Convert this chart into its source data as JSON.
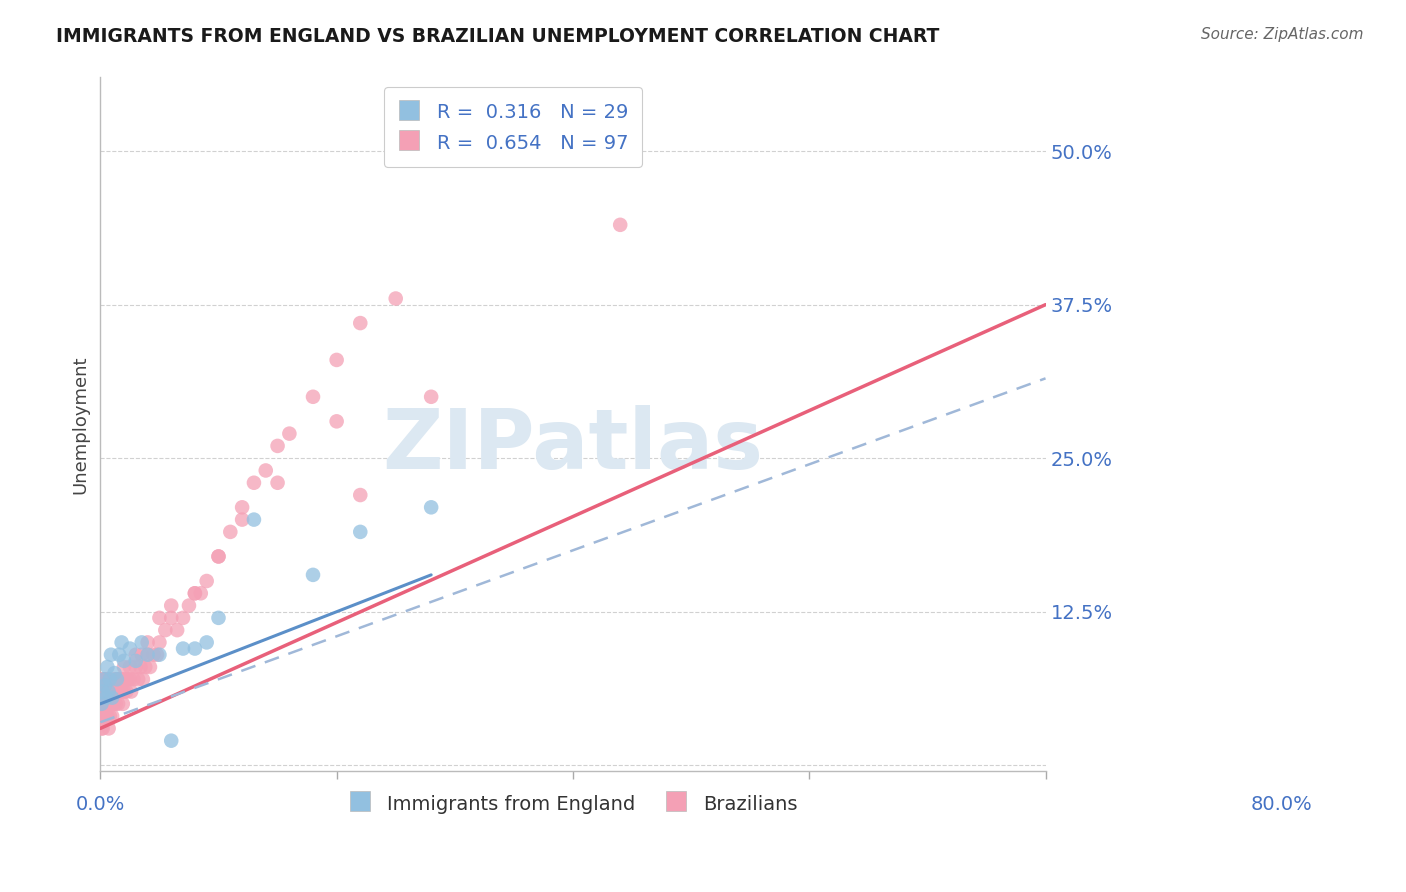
{
  "title": "IMMIGRANTS FROM ENGLAND VS BRAZILIAN UNEMPLOYMENT CORRELATION CHART",
  "source": "Source: ZipAtlas.com",
  "ylabel": "Unemployment",
  "yticks": [
    0.0,
    0.125,
    0.25,
    0.375,
    0.5
  ],
  "ytick_labels": [
    "",
    "12.5%",
    "25.0%",
    "37.5%",
    "50.0%"
  ],
  "xlim": [
    0.0,
    0.8
  ],
  "ylim": [
    -0.005,
    0.56
  ],
  "color_blue": "#92c0e0",
  "color_pink": "#f4a0b5",
  "color_blue_line": "#5b8fc8",
  "color_pink_line": "#e8607a",
  "color_dashed": "#a0b8d8",
  "watermark": "ZIPatlas",
  "eng_N": 29,
  "bra_N": 97,
  "eng_R": 0.316,
  "bra_R": 0.654,
  "legend_label1": "R =  0.316   N = 29",
  "legend_label2": "R =  0.654   N = 97",
  "legend1_label": "Immigrants from England",
  "legend2_label": "Brazilians",
  "eng_x": [
    0.001,
    0.002,
    0.003,
    0.004,
    0.005,
    0.006,
    0.007,
    0.008,
    0.009,
    0.01,
    0.012,
    0.014,
    0.016,
    0.018,
    0.02,
    0.025,
    0.03,
    0.035,
    0.04,
    0.05,
    0.06,
    0.07,
    0.08,
    0.09,
    0.1,
    0.13,
    0.18,
    0.22,
    0.28
  ],
  "eng_y": [
    0.05,
    0.06,
    0.07,
    0.065,
    0.055,
    0.08,
    0.06,
    0.07,
    0.09,
    0.055,
    0.075,
    0.07,
    0.09,
    0.1,
    0.085,
    0.095,
    0.085,
    0.1,
    0.09,
    0.09,
    0.02,
    0.095,
    0.095,
    0.1,
    0.12,
    0.2,
    0.155,
    0.19,
    0.21
  ],
  "bra_x": [
    0.001,
    0.001,
    0.001,
    0.002,
    0.002,
    0.002,
    0.003,
    0.003,
    0.003,
    0.004,
    0.004,
    0.005,
    0.005,
    0.005,
    0.006,
    0.006,
    0.007,
    0.007,
    0.008,
    0.008,
    0.009,
    0.01,
    0.01,
    0.011,
    0.012,
    0.012,
    0.013,
    0.014,
    0.015,
    0.015,
    0.016,
    0.017,
    0.018,
    0.019,
    0.02,
    0.021,
    0.022,
    0.023,
    0.025,
    0.026,
    0.028,
    0.03,
    0.032,
    0.034,
    0.036,
    0.038,
    0.04,
    0.042,
    0.045,
    0.048,
    0.05,
    0.055,
    0.06,
    0.065,
    0.07,
    0.075,
    0.08,
    0.085,
    0.09,
    0.1,
    0.11,
    0.12,
    0.13,
    0.14,
    0.15,
    0.16,
    0.18,
    0.2,
    0.22,
    0.25,
    0.001,
    0.002,
    0.003,
    0.004,
    0.005,
    0.006,
    0.007,
    0.008,
    0.01,
    0.012,
    0.015,
    0.018,
    0.02,
    0.025,
    0.03,
    0.035,
    0.04,
    0.05,
    0.06,
    0.08,
    0.1,
    0.12,
    0.15,
    0.2,
    0.22,
    0.28,
    0.44
  ],
  "bra_y": [
    0.04,
    0.05,
    0.06,
    0.03,
    0.05,
    0.07,
    0.04,
    0.06,
    0.07,
    0.05,
    0.06,
    0.04,
    0.06,
    0.07,
    0.05,
    0.07,
    0.05,
    0.06,
    0.04,
    0.06,
    0.05,
    0.04,
    0.06,
    0.05,
    0.06,
    0.07,
    0.05,
    0.06,
    0.05,
    0.07,
    0.06,
    0.07,
    0.06,
    0.05,
    0.06,
    0.07,
    0.06,
    0.07,
    0.07,
    0.06,
    0.07,
    0.08,
    0.07,
    0.08,
    0.07,
    0.08,
    0.09,
    0.08,
    0.09,
    0.09,
    0.1,
    0.11,
    0.12,
    0.11,
    0.12,
    0.13,
    0.14,
    0.14,
    0.15,
    0.17,
    0.19,
    0.21,
    0.23,
    0.24,
    0.26,
    0.27,
    0.3,
    0.33,
    0.36,
    0.38,
    0.03,
    0.04,
    0.05,
    0.04,
    0.05,
    0.04,
    0.03,
    0.05,
    0.05,
    0.06,
    0.07,
    0.07,
    0.08,
    0.08,
    0.09,
    0.09,
    0.1,
    0.12,
    0.13,
    0.14,
    0.17,
    0.2,
    0.23,
    0.28,
    0.22,
    0.3,
    0.44
  ],
  "pink_line_x0": 0.0,
  "pink_line_y0": 0.03,
  "pink_line_x1": 0.8,
  "pink_line_y1": 0.375,
  "blue_line_x0": 0.0,
  "blue_line_y0": 0.05,
  "blue_line_x1": 0.28,
  "blue_line_y1": 0.155,
  "dashed_line_x0": 0.0,
  "dashed_line_y0": 0.035,
  "dashed_line_x1": 0.8,
  "dashed_line_y1": 0.315
}
